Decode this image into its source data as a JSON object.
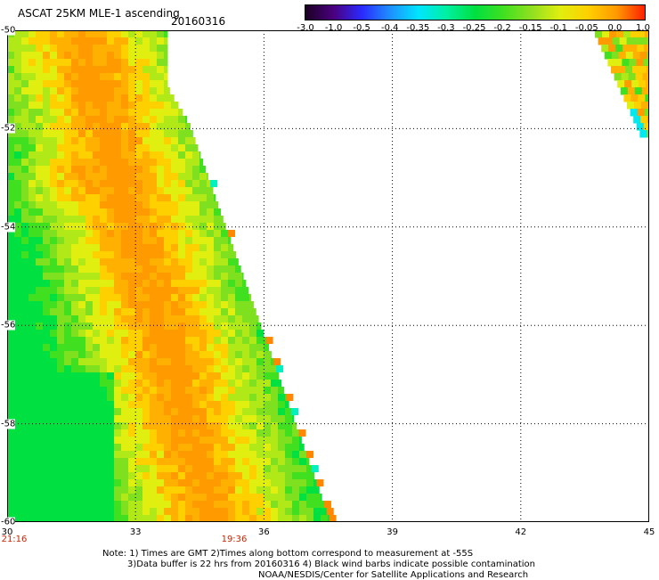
{
  "header": {
    "title": "ASCAT 25KM MLE-1 ascending",
    "date": "20160316"
  },
  "colorbar": {
    "labels": [
      "-3.0",
      "-1.0",
      "-0.5",
      "-0.4",
      "-0.35",
      "-0.3",
      "-0.25",
      "-0.2",
      "-0.15",
      "-0.1",
      "-0.05",
      "0.0",
      "1.0"
    ],
    "colors": [
      "#1a0022",
      "#4b0080",
      "#2a2aff",
      "#1e90ff",
      "#00e5ff",
      "#00f0a0",
      "#00e040",
      "#40e020",
      "#90e020",
      "#e0ee10",
      "#ffd000",
      "#ff9a00",
      "#ff2000"
    ]
  },
  "axes": {
    "y_ticks": [
      "-50",
      "-52",
      "-54",
      "-56",
      "-58",
      "-60"
    ],
    "x_ticks": [
      "30",
      "33",
      "36",
      "39",
      "42",
      "45"
    ],
    "lat_range": [
      -60,
      -50
    ],
    "lon_range": [
      30,
      45
    ]
  },
  "times": [
    "21:16",
    "19:36"
  ],
  "notes": [
    "Note: 1) Times are GMT 2)Times along bottom correspond to measurement at -55S",
    "3)Data buffer is 22 hrs from 20160316 4) Black wind barbs indicate possible contamination",
    "NOAA/NESDIS/Center for Satellite Applications and Research"
  ]
}
